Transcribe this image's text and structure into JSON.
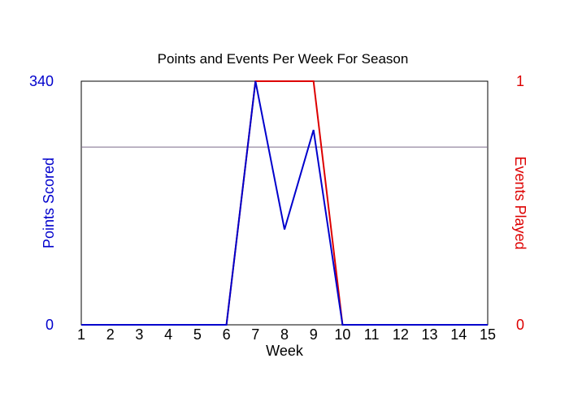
{
  "chart_data": {
    "type": "line",
    "title": "Points and Events Per Week For Season",
    "xlabel": "Week",
    "ylabel_left": "Points Scored",
    "ylabel_right": "Events Played",
    "x": [
      1,
      2,
      3,
      4,
      5,
      6,
      7,
      8,
      9,
      10,
      11,
      12,
      13,
      14,
      15
    ],
    "x_tick_labels": [
      "1",
      "2",
      "3",
      "4",
      "5",
      "6",
      "7",
      "8",
      "9",
      "10",
      "11",
      "12",
      "13",
      "14",
      "15"
    ],
    "left_axis": {
      "ylim": [
        0,
        340
      ],
      "tick_labels": [
        "0",
        "340"
      ],
      "color": "#0000CC"
    },
    "right_axis": {
      "ylim": [
        0,
        1
      ],
      "tick_labels": [
        "0",
        "1"
      ],
      "color": "#DD0000"
    },
    "series": [
      {
        "name": "Points Scored",
        "axis": "left",
        "color": "#0000CC",
        "values": [
          0,
          0,
          0,
          0,
          0,
          0,
          340,
          133,
          272,
          0,
          0,
          0,
          0,
          0,
          0
        ]
      },
      {
        "name": "Events Played",
        "axis": "right",
        "color": "#DD0000",
        "values": [
          0,
          0,
          0,
          0,
          0,
          0,
          1,
          1,
          1,
          0,
          0,
          0,
          0,
          0,
          0
        ]
      }
    ],
    "reference_line": {
      "axis": "left",
      "value": 248,
      "color": "#7a6a8a"
    },
    "grid": false,
    "legend": "none"
  }
}
